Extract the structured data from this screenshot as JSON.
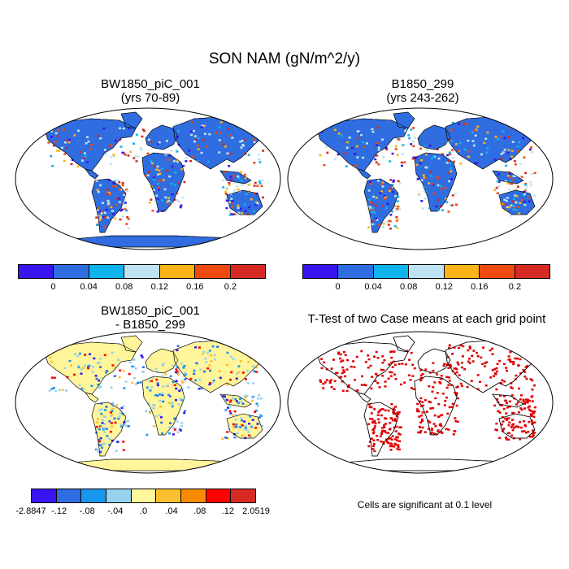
{
  "title": "SON NAM (gN/m^2/y)",
  "panels": {
    "top_left": {
      "title1": "BW1850_piC_001",
      "title2": "(yrs 70-89)"
    },
    "top_right": {
      "title1": "B1850_299",
      "title2": "(yrs 243-262)"
    },
    "bottom_left": {
      "title1": "BW1850_piC_001",
      "title2": "- B1850_299"
    },
    "bottom_right": {
      "title1": "T-Test of two Case means at each grid point",
      "note": "Cells are significant at 0.1 level"
    }
  },
  "colorbar_top": {
    "colors": [
      "#3a14f0",
      "#2f6de0",
      "#0eb4ee",
      "#bde3f2",
      "#fbb417",
      "#ef4a10",
      "#d62b25"
    ],
    "labels": [
      "0",
      "0.04",
      "0.08",
      "0.12",
      "0.16",
      "0.2"
    ]
  },
  "colorbar_bottom": {
    "colors": [
      "#3a14f0",
      "#2f6de0",
      "#1896ee",
      "#97d2ef",
      "#fff59a",
      "#fbc02d",
      "#f78a00",
      "#ff0000",
      "#d62b25"
    ],
    "labels": [
      "-2.8847",
      "-.12",
      "-.08",
      "-.04",
      ".0",
      ".04",
      ".08",
      ".12",
      "2.0519"
    ]
  },
  "colors": {
    "land_fill_top": "#2f6de0",
    "land_fill_diff": "#fff59a",
    "significance": "#e00000"
  }
}
